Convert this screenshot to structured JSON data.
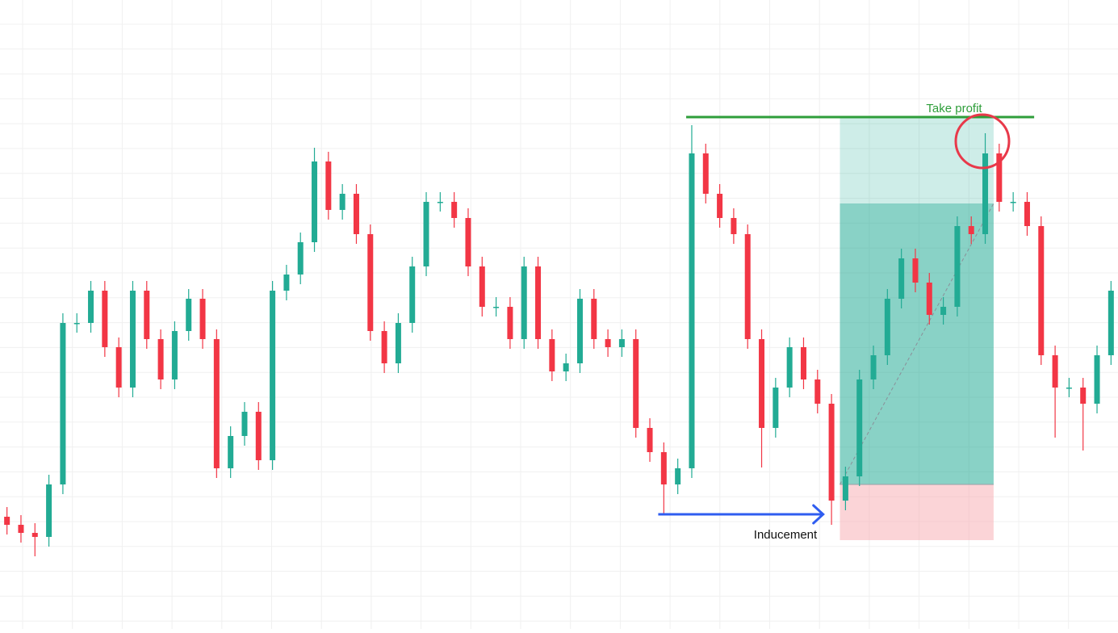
{
  "chart_data": {
    "type": "candlestick",
    "ylim": [
      0,
      779
    ],
    "up_color": "#22ab94",
    "down_color": "#f23645",
    "grid": true,
    "open": [
      139,
      129,
      119,
      114,
      179,
      379,
      379,
      419,
      349,
      299,
      419,
      359,
      309,
      369,
      409,
      359,
      199,
      239,
      269,
      209,
      419,
      439,
      479,
      579,
      519,
      539,
      489,
      369,
      329,
      379,
      449,
      529,
      529,
      509,
      449,
      399,
      399,
      359,
      449,
      359,
      319,
      329,
      409,
      359,
      349,
      359,
      249,
      219,
      179,
      199,
      589,
      539,
      509,
      489,
      359,
      249,
      299,
      349,
      309,
      279,
      159,
      189,
      309,
      339,
      409,
      459,
      429,
      389,
      399,
      499,
      489,
      589,
      529,
      529,
      499,
      339,
      299,
      299,
      279,
      339
    ],
    "high": [
      151,
      141,
      131,
      191,
      391,
      391,
      431,
      431,
      361,
      431,
      431,
      371,
      381,
      421,
      421,
      371,
      251,
      281,
      281,
      431,
      451,
      491,
      596,
      591,
      551,
      551,
      501,
      381,
      391,
      461,
      541,
      541,
      541,
      521,
      461,
      411,
      411,
      461,
      461,
      371,
      341,
      421,
      421,
      371,
      371,
      371,
      261,
      231,
      211,
      624,
      601,
      551,
      521,
      501,
      371,
      311,
      361,
      361,
      321,
      291,
      201,
      321,
      351,
      421,
      471,
      471,
      441,
      411,
      511,
      511,
      614,
      601,
      541,
      541,
      511,
      351,
      311,
      311,
      351,
      431
    ],
    "low": [
      117,
      107,
      90,
      102,
      167,
      367,
      367,
      337,
      287,
      287,
      347,
      297,
      297,
      357,
      347,
      187,
      187,
      227,
      197,
      197,
      407,
      427,
      467,
      507,
      507,
      477,
      357,
      317,
      317,
      367,
      437,
      517,
      497,
      437,
      387,
      387,
      347,
      347,
      347,
      307,
      307,
      317,
      347,
      337,
      337,
      237,
      207,
      142,
      167,
      187,
      527,
      497,
      477,
      347,
      200,
      237,
      287,
      297,
      267,
      129,
      147,
      177,
      297,
      327,
      397,
      417,
      377,
      377,
      387,
      477,
      477,
      517,
      517,
      487,
      327,
      237,
      287,
      221,
      267,
      327
    ],
    "close": [
      129,
      119,
      114,
      179,
      379,
      379,
      419,
      349,
      299,
      419,
      359,
      309,
      369,
      409,
      359,
      199,
      239,
      269,
      209,
      419,
      439,
      479,
      579,
      519,
      539,
      489,
      369,
      329,
      379,
      449,
      529,
      529,
      509,
      449,
      399,
      399,
      359,
      449,
      359,
      319,
      329,
      409,
      359,
      349,
      359,
      249,
      219,
      179,
      199,
      589,
      539,
      509,
      489,
      359,
      249,
      299,
      349,
      309,
      279,
      159,
      189,
      309,
      339,
      409,
      459,
      429,
      389,
      399,
      499,
      489,
      589,
      529,
      529,
      499,
      339,
      299,
      299,
      279,
      339,
      419
    ],
    "position": {
      "from": 59.6,
      "to": 70.6,
      "entry": 179,
      "target": 634,
      "reached": 527,
      "stop": 110,
      "profit_color": "#22ab94",
      "loss_color": "#f7a9b0"
    },
    "take_profit": {
      "label": "Take profit",
      "value": 634,
      "from": 48.6,
      "to": 73.5,
      "color": "#2e9e3a"
    },
    "inducement": {
      "label": "Inducement",
      "value": 142,
      "from": 46.6,
      "to": 58.4,
      "color": "#2f5df0"
    }
  }
}
